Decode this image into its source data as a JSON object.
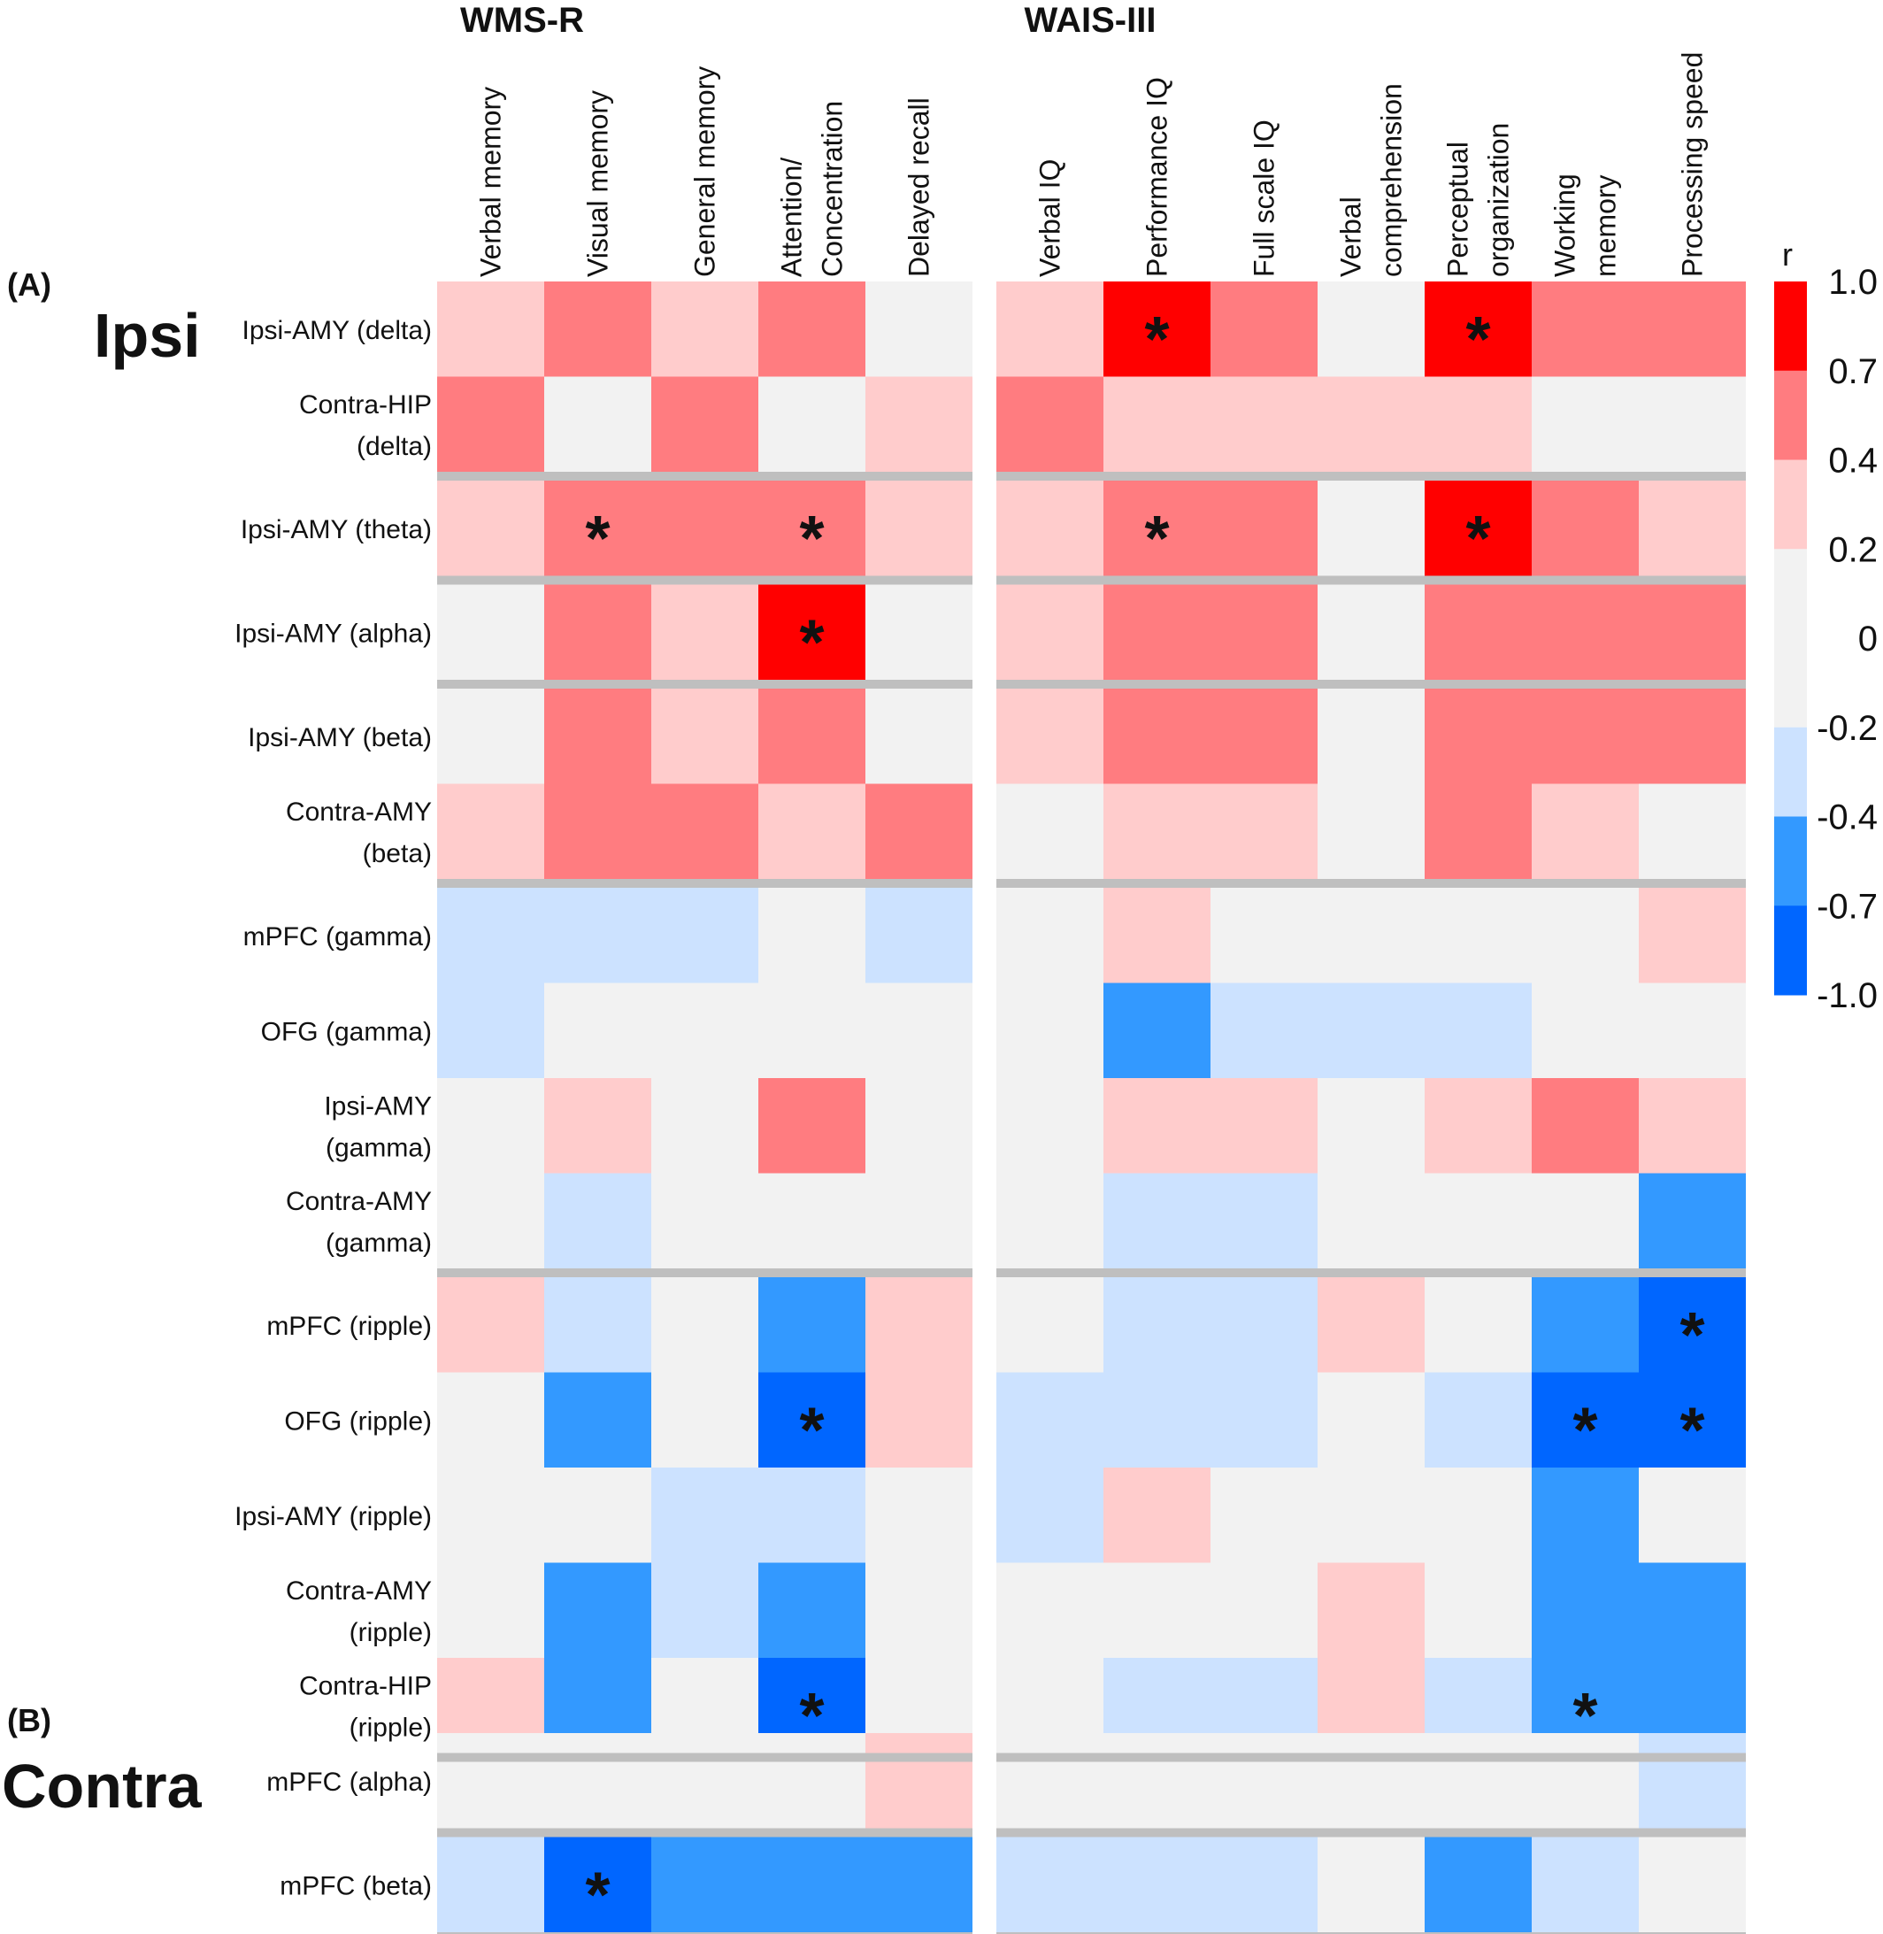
{
  "chart_data": {
    "type": "heatmap",
    "panels": [
      {
        "title": "WMS-R",
        "columns": [
          "Verbal memory",
          "Visual memory",
          "General memory",
          "Attention/\nConcentration",
          "Delayed recall"
        ]
      },
      {
        "title": "WAIS-III",
        "columns": [
          "Verbal IQ",
          "Performance IQ",
          "Full scale IQ",
          "Verbal\ncomprehension",
          "Perceptual\norganization",
          "Working\nmemory",
          "Processing speed"
        ]
      }
    ],
    "sections": [
      {
        "label": "(A)",
        "title": "Ipsi",
        "groups": [
          {
            "rows": [
              {
                "label": "Ipsi-AMY (delta)",
                "values": [
                  0.3,
                  0.55,
                  0.3,
                  0.55,
                  0,
                  0.3,
                  0.85,
                  0.55,
                  0,
                  0.85,
                  0.55,
                  0.55
                ],
                "sig": [
                  false,
                  false,
                  false,
                  false,
                  false,
                  false,
                  true,
                  false,
                  false,
                  true,
                  false,
                  false
                ]
              },
              {
                "label": "Contra-HIP\n(delta)",
                "values": [
                  0.55,
                  0,
                  0.55,
                  0,
                  0.3,
                  0.55,
                  0.3,
                  0.3,
                  0.3,
                  0.3,
                  0,
                  0
                ],
                "sig": [
                  false,
                  false,
                  false,
                  false,
                  false,
                  false,
                  false,
                  false,
                  false,
                  false,
                  false,
                  false
                ]
              }
            ]
          },
          {
            "rows": [
              {
                "label": "Ipsi-AMY (theta)",
                "values": [
                  0.3,
                  0.55,
                  0.55,
                  0.55,
                  0.3,
                  0.3,
                  0.55,
                  0.55,
                  0,
                  0.85,
                  0.55,
                  0.3
                ],
                "sig": [
                  false,
                  true,
                  false,
                  true,
                  false,
                  false,
                  true,
                  false,
                  false,
                  true,
                  false,
                  false
                ]
              }
            ]
          },
          {
            "rows": [
              {
                "label": "Ipsi-AMY (alpha)",
                "values": [
                  0,
                  0.55,
                  0.3,
                  0.85,
                  0,
                  0.3,
                  0.55,
                  0.55,
                  0,
                  0.55,
                  0.55,
                  0.55
                ],
                "sig": [
                  false,
                  false,
                  false,
                  true,
                  false,
                  false,
                  false,
                  false,
                  false,
                  false,
                  false,
                  false
                ]
              }
            ]
          },
          {
            "rows": [
              {
                "label": "Ipsi-AMY (beta)",
                "values": [
                  0,
                  0.55,
                  0.3,
                  0.55,
                  0,
                  0.3,
                  0.55,
                  0.55,
                  0,
                  0.55,
                  0.55,
                  0.55
                ],
                "sig": [
                  false,
                  false,
                  false,
                  false,
                  false,
                  false,
                  false,
                  false,
                  false,
                  false,
                  false,
                  false
                ]
              },
              {
                "label": "Contra-AMY\n(beta)",
                "values": [
                  0.3,
                  0.55,
                  0.55,
                  0.3,
                  0.55,
                  0,
                  0.3,
                  0.3,
                  0,
                  0.55,
                  0.3,
                  0
                ],
                "sig": [
                  false,
                  false,
                  false,
                  false,
                  false,
                  false,
                  false,
                  false,
                  false,
                  false,
                  false,
                  false
                ]
              }
            ]
          },
          {
            "rows": [
              {
                "label": "mPFC (gamma)",
                "values": [
                  -0.3,
                  -0.3,
                  -0.3,
                  0,
                  -0.3,
                  0,
                  0.3,
                  0,
                  0,
                  0,
                  0,
                  0.3
                ],
                "sig": [
                  false,
                  false,
                  false,
                  false,
                  false,
                  false,
                  false,
                  false,
                  false,
                  false,
                  false,
                  false
                ]
              },
              {
                "label": "OFG (gamma)",
                "values": [
                  -0.3,
                  0,
                  0,
                  0,
                  0,
                  0,
                  -0.55,
                  -0.3,
                  -0.3,
                  -0.3,
                  0,
                  0
                ],
                "sig": [
                  false,
                  false,
                  false,
                  false,
                  false,
                  false,
                  false,
                  false,
                  false,
                  false,
                  false,
                  false
                ]
              },
              {
                "label": "Ipsi-AMY\n(gamma)",
                "values": [
                  0,
                  0.3,
                  0,
                  0.55,
                  0,
                  0,
                  0.3,
                  0.3,
                  0,
                  0.3,
                  0.55,
                  0.3
                ],
                "sig": [
                  false,
                  false,
                  false,
                  false,
                  false,
                  false,
                  false,
                  false,
                  false,
                  false,
                  false,
                  false
                ]
              },
              {
                "label": "Contra-AMY\n(gamma)",
                "values": [
                  0,
                  -0.3,
                  0,
                  0,
                  0,
                  0,
                  -0.3,
                  -0.3,
                  0,
                  0,
                  0,
                  -0.55
                ],
                "sig": [
                  false,
                  false,
                  false,
                  false,
                  false,
                  false,
                  false,
                  false,
                  false,
                  false,
                  false,
                  false
                ]
              }
            ]
          },
          {
            "rows": [
              {
                "label": "mPFC (ripple)",
                "values": [
                  0.3,
                  -0.3,
                  0,
                  -0.55,
                  0.3,
                  0,
                  -0.3,
                  -0.3,
                  0.3,
                  0,
                  -0.55,
                  -0.85
                ],
                "sig": [
                  false,
                  false,
                  false,
                  false,
                  false,
                  false,
                  false,
                  false,
                  false,
                  false,
                  false,
                  true
                ]
              },
              {
                "label": "OFG (ripple)",
                "values": [
                  0,
                  -0.55,
                  0,
                  -0.85,
                  0.3,
                  -0.3,
                  -0.3,
                  -0.3,
                  0,
                  -0.3,
                  -0.85,
                  -0.85
                ],
                "sig": [
                  false,
                  false,
                  false,
                  true,
                  false,
                  false,
                  false,
                  false,
                  false,
                  false,
                  true,
                  true
                ]
              },
              {
                "label": "Ipsi-AMY (ripple)",
                "values": [
                  0,
                  0,
                  -0.3,
                  -0.3,
                  0,
                  -0.3,
                  0.3,
                  0,
                  0,
                  0,
                  -0.55,
                  0
                ],
                "sig": [
                  false,
                  false,
                  false,
                  false,
                  false,
                  false,
                  false,
                  false,
                  false,
                  false,
                  false,
                  false
                ]
              },
              {
                "label": "Contra-AMY\n(ripple)",
                "values": [
                  0,
                  -0.55,
                  -0.3,
                  -0.55,
                  0,
                  0,
                  0,
                  0,
                  0.3,
                  0,
                  -0.55,
                  -0.55
                ],
                "sig": [
                  false,
                  false,
                  false,
                  false,
                  false,
                  false,
                  false,
                  false,
                  false,
                  false,
                  false,
                  false
                ]
              },
              {
                "label": "Contra-HIP\n(ripple)",
                "values": [
                  0.3,
                  -0.55,
                  0,
                  -0.85,
                  0,
                  0,
                  -0.3,
                  -0.3,
                  0.3,
                  -0.3,
                  -0.55,
                  -0.55
                ],
                "sig": [
                  false,
                  false,
                  false,
                  true,
                  false,
                  false,
                  false,
                  false,
                  false,
                  false,
                  true,
                  false
                ]
              }
            ]
          }
        ]
      },
      {
        "label": "(B)",
        "title": "Contra",
        "groups": [
          {
            "rows": [
              {
                "label": "mPFC (alpha)",
                "values": [
                  0,
                  0,
                  0,
                  0,
                  0.3,
                  0,
                  0,
                  0,
                  0,
                  0,
                  0,
                  -0.3
                ],
                "sig": [
                  false,
                  false,
                  false,
                  false,
                  false,
                  false,
                  false,
                  false,
                  false,
                  false,
                  false,
                  false
                ]
              }
            ]
          },
          {
            "rows": [
              {
                "label": "mPFC (beta)",
                "values": [
                  -0.3,
                  -0.85,
                  -0.55,
                  -0.55,
                  -0.55,
                  -0.3,
                  -0.3,
                  -0.3,
                  0,
                  -0.55,
                  -0.3,
                  0
                ],
                "sig": [
                  false,
                  true,
                  false,
                  false,
                  false,
                  false,
                  false,
                  false,
                  false,
                  false,
                  false,
                  false
                ]
              }
            ]
          }
        ]
      }
    ],
    "colorbar": {
      "title": "r",
      "ticks": [
        "1.0",
        "0.7",
        "0.4",
        "0.2",
        "0",
        "-0.2",
        "-0.4",
        "-0.7",
        "-1.0"
      ],
      "bins": [
        {
          "min": 0.7,
          "max": 1.0,
          "color": "#ff0000"
        },
        {
          "min": 0.4,
          "max": 0.7,
          "color": "#ff7c80"
        },
        {
          "min": 0.2,
          "max": 0.4,
          "color": "#ffcccc"
        },
        {
          "min": -0.2,
          "max": 0.2,
          "color": "#f2f2f2"
        },
        {
          "min": -0.4,
          "max": -0.2,
          "color": "#cce2ff"
        },
        {
          "min": -0.7,
          "max": -0.4,
          "color": "#3399ff"
        },
        {
          "min": -1.0,
          "max": -0.7,
          "color": "#0066ff"
        }
      ]
    },
    "significance_marker": "*",
    "separator_color": "#bfbfbf"
  }
}
